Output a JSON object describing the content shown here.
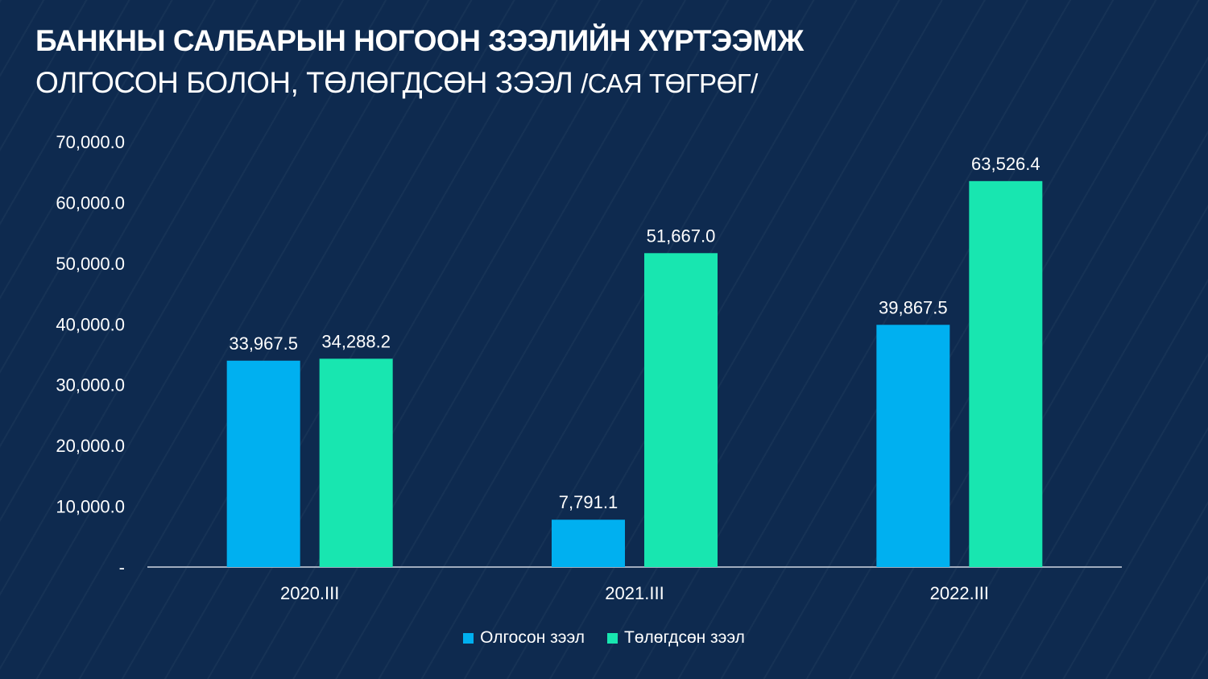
{
  "header": {
    "title": "БАНКНЫ САЛБАРЫН НОГООН ЗЭЭЛИЙН ХҮРТЭЭМЖ",
    "subtitle_main": "ОЛГОСОН БОЛОН, ТӨЛӨГДСӨН ЗЭЭЛ",
    "subtitle_unit": "/САЯ ТӨГРӨГ/"
  },
  "colors": {
    "background": "#0e2a4f",
    "series_1": "#00b0f0",
    "series_2": "#18e6b0"
  },
  "chart_data": {
    "type": "bar",
    "title": "БАНКНЫ САЛБАРЫН НОГООН ЗЭЭЛИЙН ХҮРТЭЭМЖ",
    "subtitle": "ОЛГОСОН БОЛОН, ТӨЛӨГДСӨН ЗЭЭЛ /САЯ ТӨГРӨГ/",
    "categories": [
      "2020.III",
      "2021.III",
      "2022.III"
    ],
    "series": [
      {
        "name": "Олгосон зээл",
        "values": [
          33967.5,
          7791.1,
          39867.5
        ],
        "labels": [
          "33,967.5",
          "7,791.1",
          "39,867.5"
        ]
      },
      {
        "name": "Төлөгдсөн зээл",
        "values": [
          34288.2,
          51667.0,
          63526.4
        ],
        "labels": [
          "34,288.2",
          "51,667.0",
          "63,526.4"
        ]
      }
    ],
    "ylim": [
      0,
      70000
    ],
    "yticks": [
      0,
      10000,
      20000,
      30000,
      40000,
      50000,
      60000,
      70000
    ],
    "ytick_labels": [
      "-",
      "10,000.0",
      "20,000.0",
      "30,000.0",
      "40,000.0",
      "50,000.0",
      "60,000.0",
      "70,000.0"
    ],
    "grid": false,
    "legend": "bottom"
  }
}
